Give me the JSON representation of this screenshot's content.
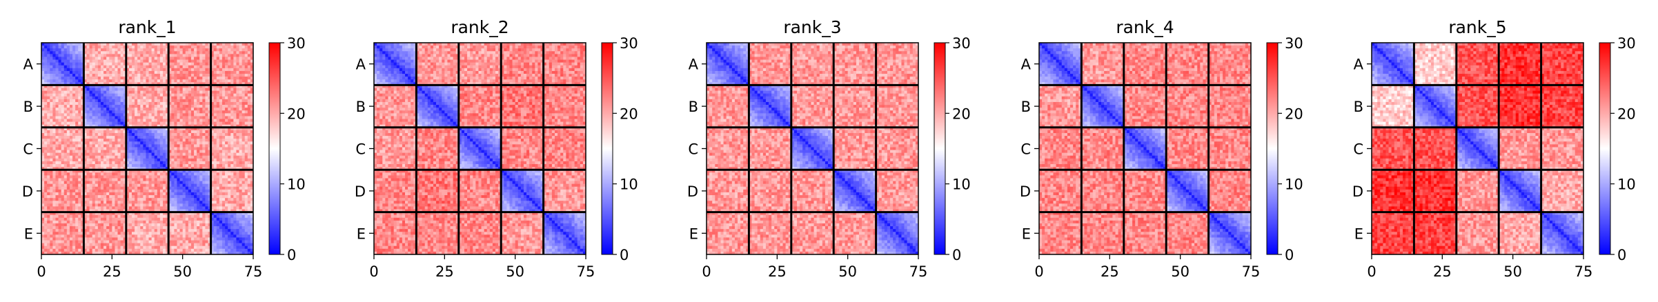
{
  "chart_data": {
    "type": "heatmap",
    "figure": {
      "panel_titles": [
        "rank_1",
        "rank_2",
        "rank_3",
        "rank_4",
        "rank_5"
      ],
      "shared_x_ticks": [
        0,
        25,
        50,
        75
      ],
      "shared_y_labels": [
        "A",
        "B",
        "C",
        "D",
        "E"
      ],
      "colorbar_ticks": [
        0,
        10,
        20,
        30
      ],
      "colorbar_range": [
        0,
        30
      ],
      "colormap": [
        "#0000ff",
        "#ffffff",
        "#ff0000"
      ],
      "grid_lines": "black block boundaries every 15 cells",
      "legend": "colorbar right of each panel"
    },
    "panels": [
      {
        "title": "rank_1",
        "matrix_size": 75,
        "block_size": 15,
        "block_labels": [
          "A",
          "B",
          "C",
          "D",
          "E"
        ],
        "xlim": [
          0,
          75
        ],
        "ylim": [
          0,
          75
        ],
        "clim": [
          0,
          30
        ],
        "block_mean_values": [
          [
            8,
            20,
            20,
            21,
            21
          ],
          [
            20,
            8,
            20,
            21,
            21
          ],
          [
            20,
            20,
            8,
            21,
            20
          ],
          [
            21,
            21,
            21,
            8,
            20
          ],
          [
            21,
            21,
            20,
            20,
            8
          ]
        ]
      },
      {
        "title": "rank_2",
        "matrix_size": 75,
        "block_size": 15,
        "block_labels": [
          "A",
          "B",
          "C",
          "D",
          "E"
        ],
        "xlim": [
          0,
          75
        ],
        "ylim": [
          0,
          75
        ],
        "clim": [
          0,
          30
        ],
        "block_mean_values": [
          [
            8,
            21,
            21,
            22,
            22
          ],
          [
            21,
            8,
            22,
            23,
            22
          ],
          [
            21,
            22,
            8,
            22,
            22
          ],
          [
            22,
            23,
            22,
            8,
            21
          ],
          [
            22,
            22,
            22,
            21,
            8
          ]
        ]
      },
      {
        "title": "rank_3",
        "matrix_size": 75,
        "block_size": 15,
        "block_labels": [
          "A",
          "B",
          "C",
          "D",
          "E"
        ],
        "xlim": [
          0,
          75
        ],
        "ylim": [
          0,
          75
        ],
        "clim": [
          0,
          30
        ],
        "block_mean_values": [
          [
            8,
            21,
            21,
            21,
            21
          ],
          [
            21,
            8,
            21,
            21,
            21
          ],
          [
            21,
            21,
            8,
            21,
            21
          ],
          [
            21,
            21,
            21,
            8,
            21
          ],
          [
            21,
            21,
            21,
            21,
            8
          ]
        ]
      },
      {
        "title": "rank_4",
        "matrix_size": 75,
        "block_size": 15,
        "block_labels": [
          "A",
          "B",
          "C",
          "D",
          "E"
        ],
        "xlim": [
          0,
          75
        ],
        "ylim": [
          0,
          75
        ],
        "clim": [
          0,
          30
        ],
        "block_mean_values": [
          [
            7,
            21,
            22,
            22,
            22
          ],
          [
            21,
            7,
            22,
            22,
            22
          ],
          [
            22,
            22,
            7,
            22,
            22
          ],
          [
            22,
            22,
            22,
            7,
            22
          ],
          [
            22,
            22,
            22,
            22,
            7
          ]
        ]
      },
      {
        "title": "rank_5",
        "matrix_size": 75,
        "block_size": 15,
        "block_labels": [
          "A",
          "B",
          "C",
          "D",
          "E"
        ],
        "xlim": [
          0,
          75
        ],
        "ylim": [
          0,
          75
        ],
        "clim": [
          0,
          30
        ],
        "block_mean_values": [
          [
            10,
            18,
            25,
            27,
            26
          ],
          [
            18,
            9,
            25,
            27,
            26
          ],
          [
            25,
            25,
            10,
            21,
            21
          ],
          [
            27,
            27,
            21,
            9,
            20
          ],
          [
            26,
            26,
            21,
            20,
            9
          ]
        ]
      }
    ]
  }
}
